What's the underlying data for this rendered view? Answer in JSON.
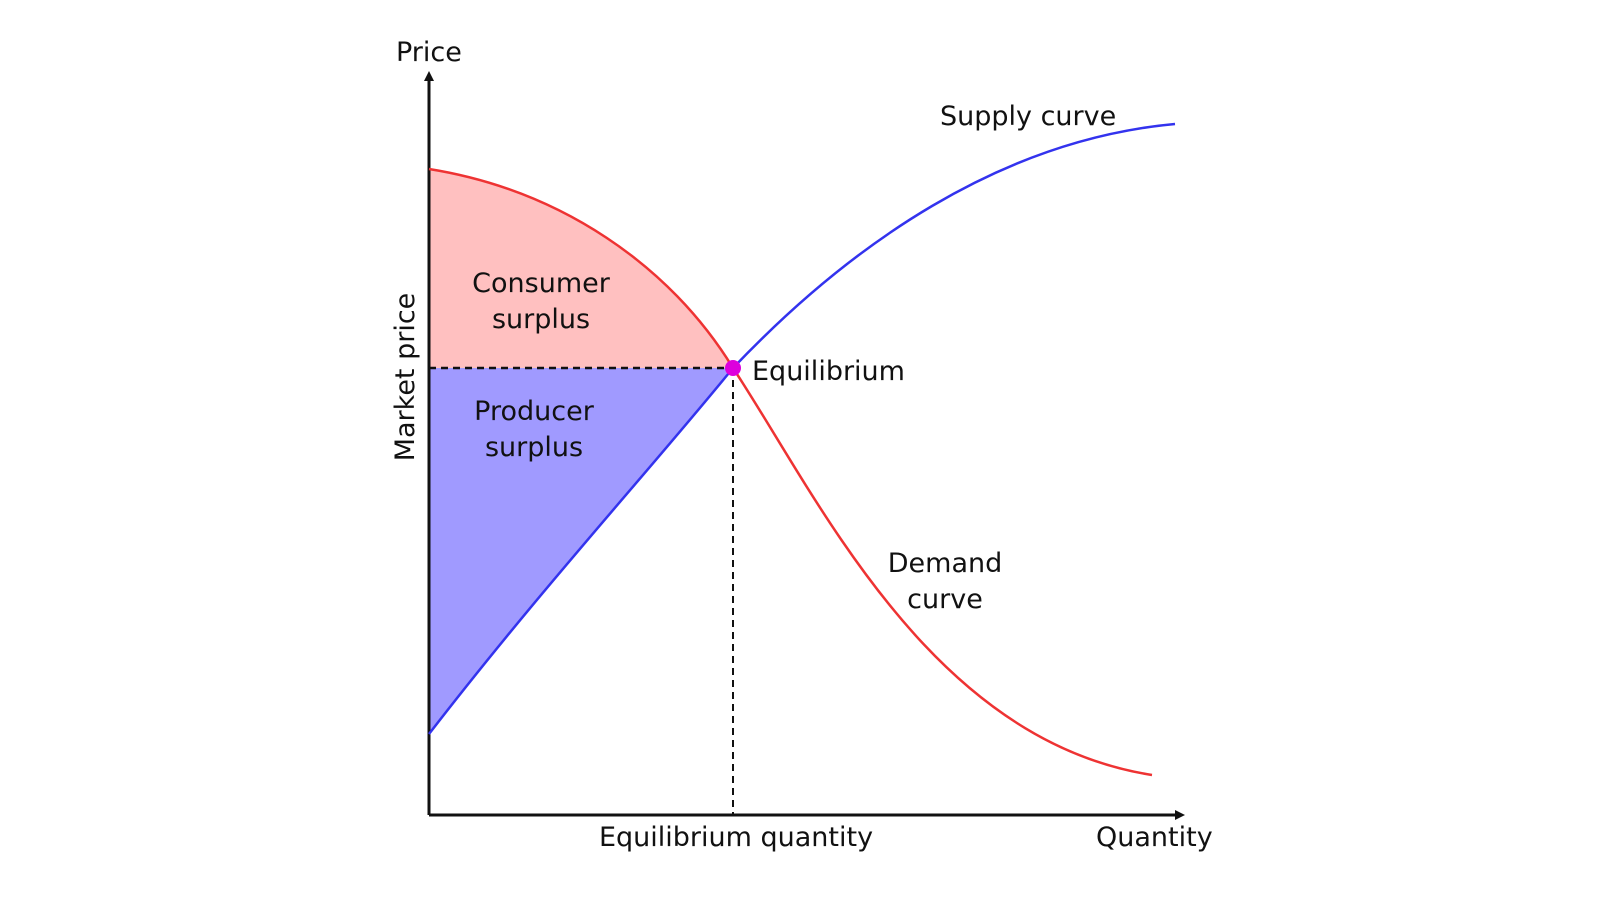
{
  "labels": {
    "price_axis": "Price",
    "market_price_axis": "Market price",
    "quantity_axis": "Quantity",
    "equilibrium_quantity": "Equilibrium quantity",
    "equilibrium_point": "Equilibrium",
    "supply_curve": "Supply curve",
    "demand_curve_line1": "Demand",
    "demand_curve_line2": "curve",
    "consumer_surplus_line1": "Consumer",
    "consumer_surplus_line2": "surplus",
    "producer_surplus_line1": "Producer",
    "producer_surplus_line2": "surplus"
  },
  "colors": {
    "supply": "#3333ee",
    "demand": "#ee3333",
    "consumer_surplus_fill": "#ffc0c0",
    "producer_surplus_fill": "#a09aff",
    "equilibrium_dot": "#dd00dd",
    "axis": "#111111"
  }
}
